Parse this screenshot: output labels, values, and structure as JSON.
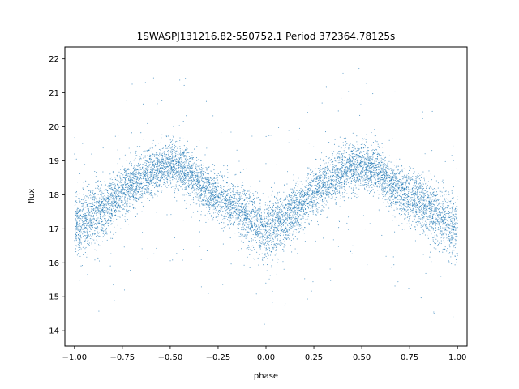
{
  "chart_data": {
    "type": "scatter",
    "title": "1SWASPJ131216.82-550752.1 Period 372364.78125s",
    "xlabel": "phase",
    "ylabel": "flux",
    "xlim": [
      -1.05,
      1.05
    ],
    "ylim": [
      13.55,
      22.35
    ],
    "xticks": [
      -1.0,
      -0.75,
      -0.5,
      -0.25,
      0.0,
      0.25,
      0.5,
      0.75,
      1.0
    ],
    "xtick_labels": [
      "−1.00",
      "−0.75",
      "−0.50",
      "−0.25",
      "0.00",
      "0.25",
      "0.50",
      "0.75",
      "1.00"
    ],
    "yticks": [
      14,
      15,
      16,
      17,
      18,
      19,
      20,
      21,
      22
    ],
    "ytick_labels": [
      "14",
      "15",
      "16",
      "17",
      "18",
      "19",
      "20",
      "21",
      "22"
    ],
    "grid": false,
    "marker_color": "#1f77b4",
    "point_count_note": "dense point cloud",
    "series": [
      {
        "name": "",
        "note": "representative phase-folded light curve; values in data units (phase, flux)",
        "phase": [
          -1.0,
          -0.9,
          -0.8,
          -0.7,
          -0.6,
          -0.5,
          -0.4,
          -0.3,
          -0.2,
          -0.1,
          0.0,
          0.1,
          0.2,
          0.3,
          0.4,
          0.5,
          0.6,
          0.7,
          0.8,
          0.9,
          1.0
        ],
        "flux_mean": [
          17.0,
          17.4,
          17.8,
          18.3,
          18.7,
          18.9,
          18.6,
          18.1,
          17.8,
          17.4,
          16.9,
          17.3,
          17.8,
          18.3,
          18.7,
          18.9,
          18.6,
          18.1,
          17.8,
          17.4,
          17.0
        ],
        "flux_scatter": [
          0.45,
          0.45,
          0.4,
          0.35,
          0.35,
          0.35,
          0.35,
          0.35,
          0.35,
          0.4,
          0.45,
          0.4,
          0.35,
          0.35,
          0.35,
          0.35,
          0.35,
          0.35,
          0.4,
          0.45,
          0.45
        ]
      }
    ]
  }
}
